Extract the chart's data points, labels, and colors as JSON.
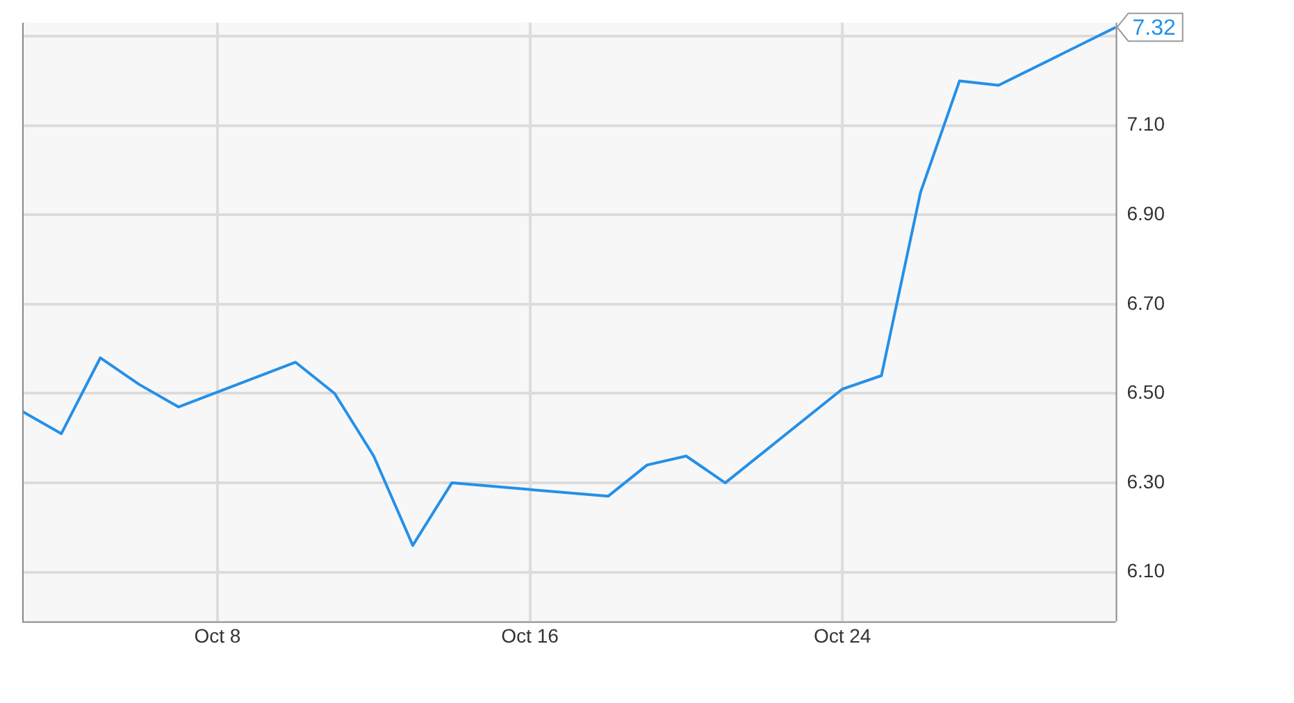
{
  "chart_data": {
    "type": "line",
    "x": [
      "--10-03",
      "--10-04",
      "--10-05",
      "--10-06",
      "--10-07",
      "--10-10",
      "--10-11",
      "--10-12",
      "--10-13",
      "--10-14",
      "--10-18",
      "--10-19",
      "--10-20",
      "--10-21",
      "--10-24",
      "--10-25",
      "--10-26",
      "--10-27",
      "--10-28",
      "--10-31"
    ],
    "series": [
      {
        "color": "#2490e8",
        "values": [
          6.46,
          6.41,
          6.58,
          6.52,
          6.47,
          6.57,
          6.5,
          6.36,
          6.16,
          6.3,
          6.27,
          6.34,
          6.36,
          6.3,
          6.51,
          6.54,
          6.95,
          7.2,
          7.19,
          7.32
        ]
      }
    ],
    "xlim": [
      "--10-03",
      "--10-31"
    ],
    "xticks": [
      {
        "value": "--10-08",
        "label": "Oct 8"
      },
      {
        "value": "--10-16",
        "label": "Oct 16"
      },
      {
        "value": "--10-24",
        "label": "Oct 24"
      }
    ],
    "ylim": [
      5.99,
      7.33
    ],
    "yticks": [
      {
        "value": 6.1,
        "label": "6.10"
      },
      {
        "value": 6.3,
        "label": "6.30"
      },
      {
        "value": 6.5,
        "label": "6.50"
      },
      {
        "value": 6.7,
        "label": "6.70"
      },
      {
        "value": 6.9,
        "label": "6.90"
      },
      {
        "value": 7.1,
        "label": "7.10"
      },
      {
        "value": 7.3,
        "label": null
      }
    ],
    "annotations": [
      {
        "text": "7.32",
        "x": "--10-31",
        "y": 7.32
      }
    ],
    "grid": true,
    "legend": false,
    "marker": "none",
    "line_style": "solid"
  }
}
